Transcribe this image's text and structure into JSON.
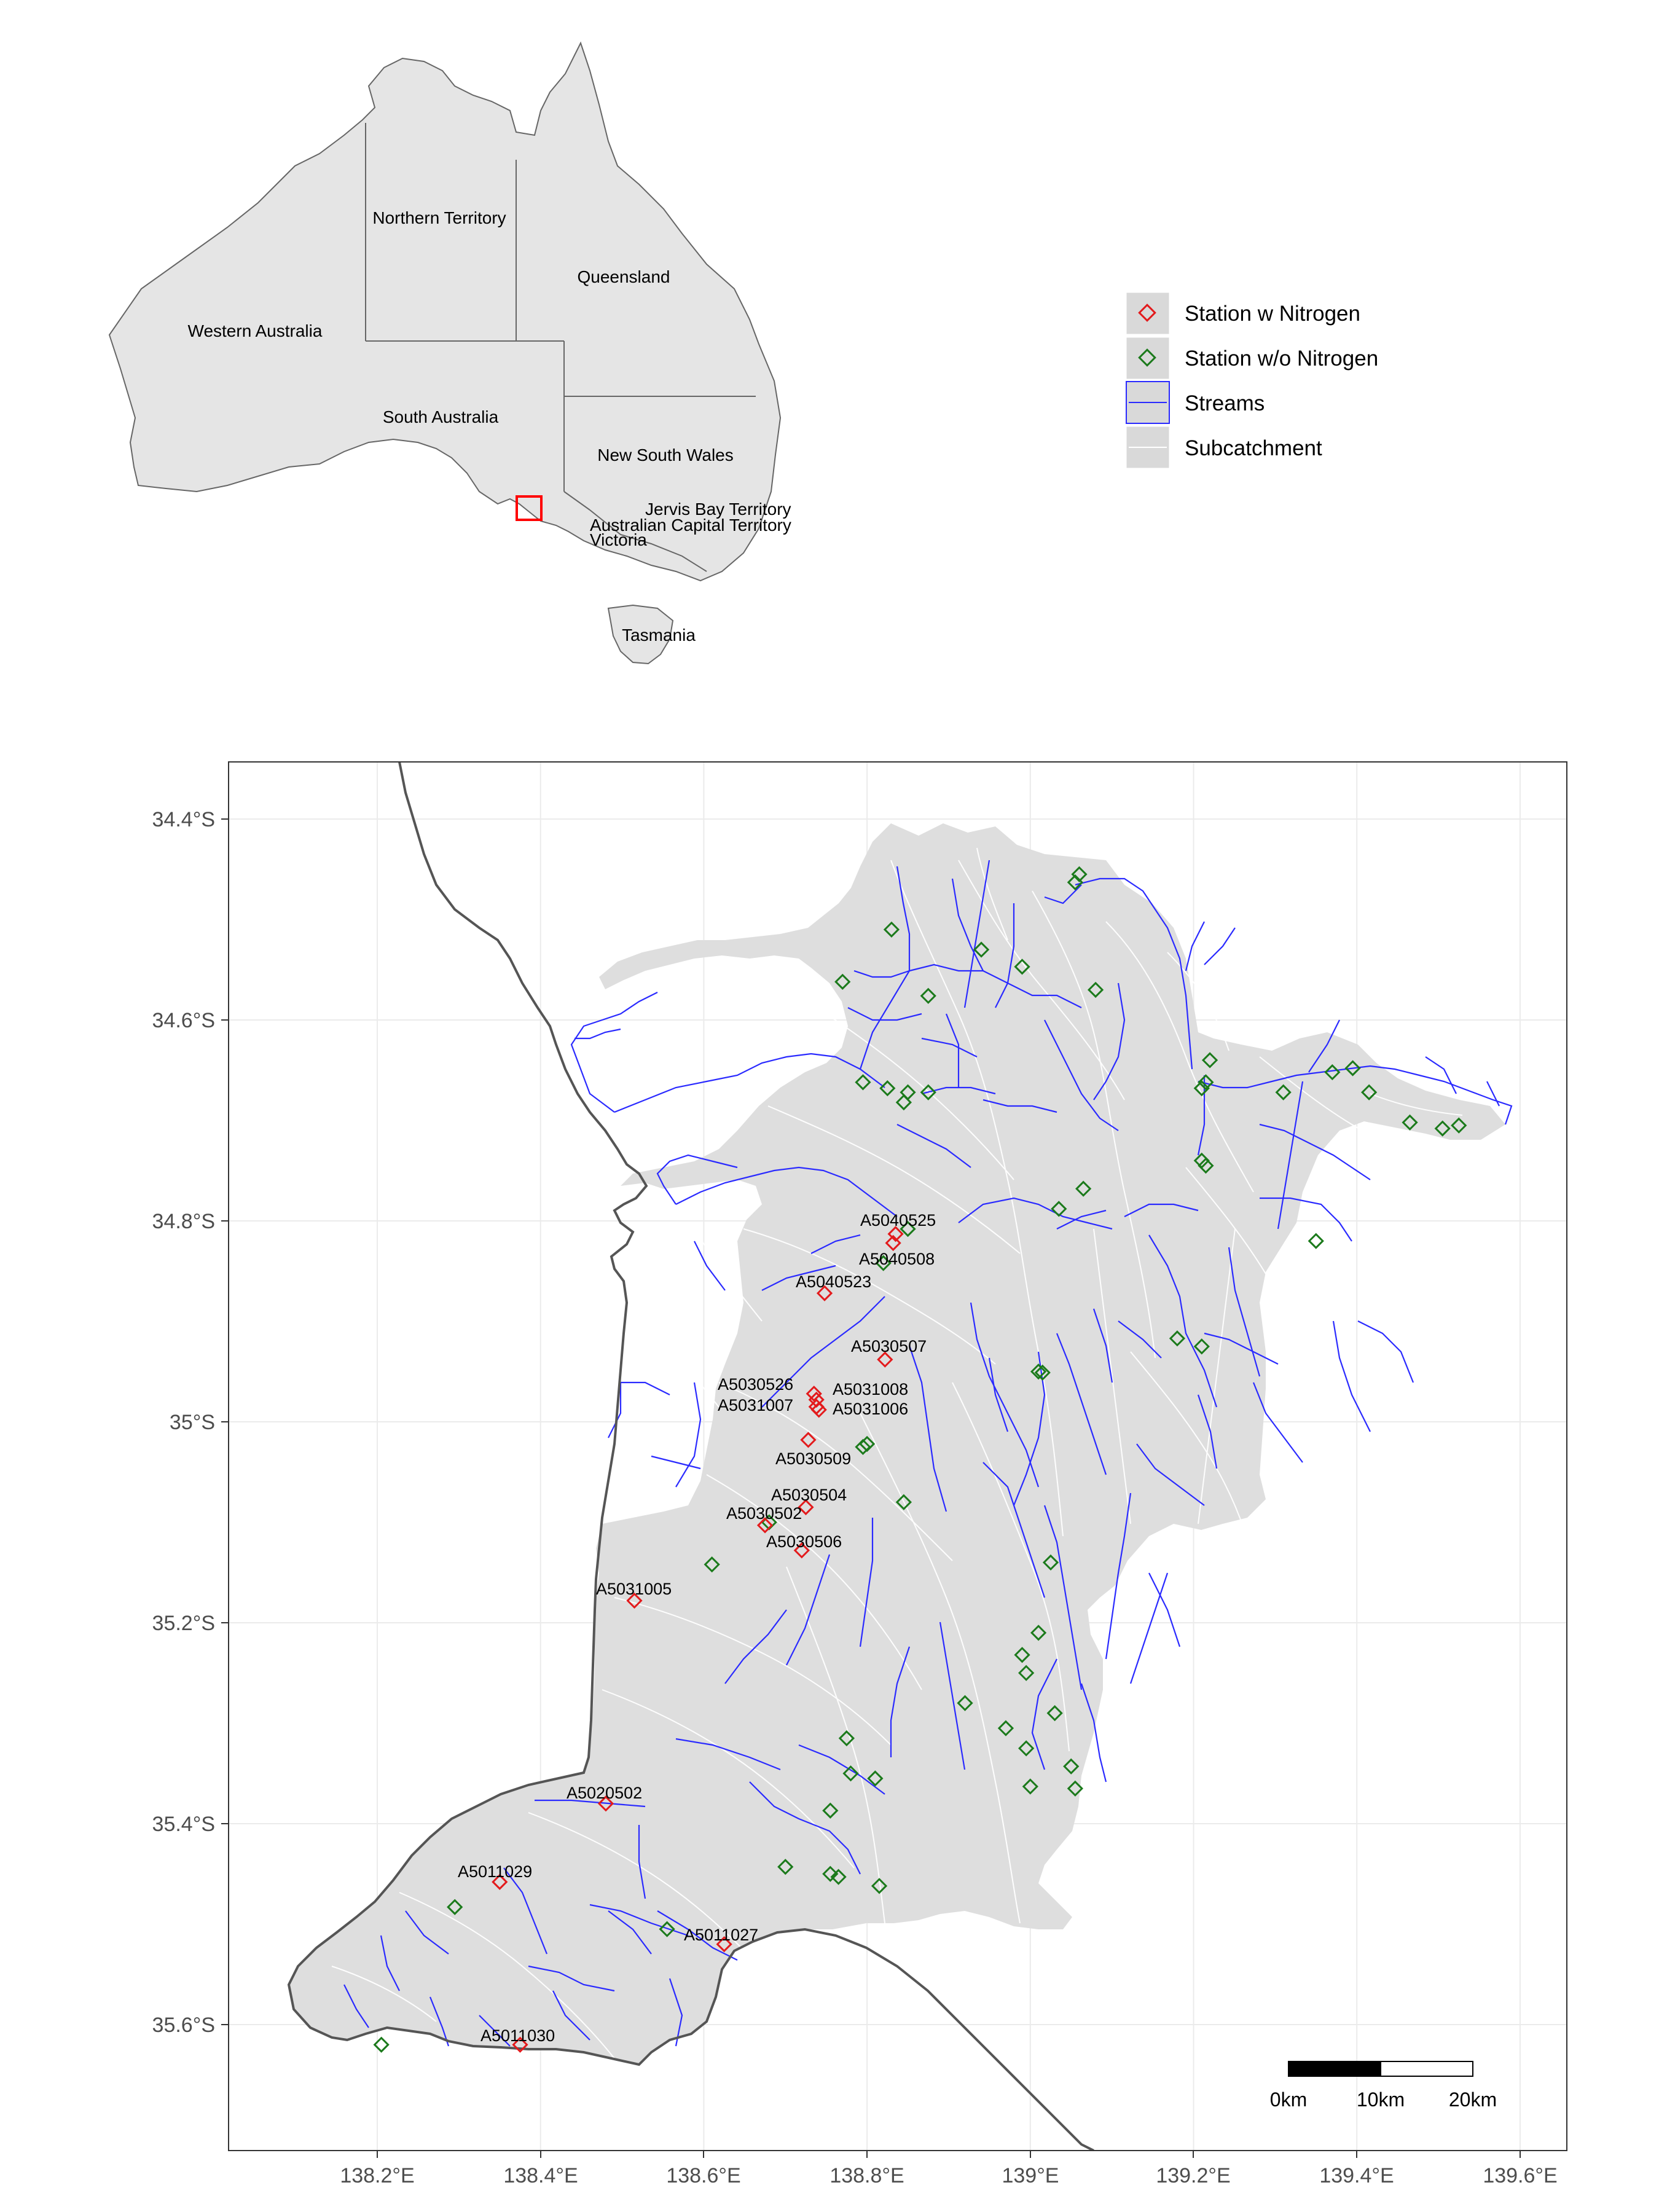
{
  "legend": {
    "items": [
      {
        "key": "with_n",
        "label": "Station w Nitrogen",
        "color": "#e31a1c"
      },
      {
        "key": "without_n",
        "label": "Station w/o Nitrogen",
        "color": "#1b7a1b"
      },
      {
        "key": "streams",
        "label": "Streams",
        "color": "#2a2aff"
      },
      {
        "key": "subcatchment",
        "label": "Subcatchment",
        "color": "#ffffff"
      }
    ]
  },
  "inset": {
    "states": [
      "Northern Territory",
      "Queensland",
      "Western Australia",
      "South Australia",
      "New South Wales",
      "Jervis Bay Territory",
      "Australian Capital Territory",
      "Victoria",
      "Tasmania"
    ]
  },
  "axes": {
    "y_ticks": [
      "34.4°S",
      "34.6°S",
      "34.8°S",
      "35°S",
      "35.2°S",
      "35.4°S",
      "35.6°S"
    ],
    "x_ticks": [
      "138.2°E",
      "138.4°E",
      "138.6°E",
      "138.8°E",
      "139°E",
      "139.2°E",
      "139.4°E",
      "139.6°E"
    ]
  },
  "scale_bar": {
    "labels": [
      "0km",
      "10km",
      "20km"
    ]
  },
  "stations_with_n": [
    {
      "id": "A5040525",
      "lon": 138.835,
      "lat": -34.813
    },
    {
      "id": "A5040508",
      "lon": 138.832,
      "lat": -34.822
    },
    {
      "id": "A5040523",
      "lon": 138.748,
      "lat": -34.872
    },
    {
      "id": "A5030507",
      "lon": 138.822,
      "lat": -34.938
    },
    {
      "id": "A5030526",
      "lon": 138.735,
      "lat": -34.972
    },
    {
      "id": "A5031008",
      "lon": 138.738,
      "lat": -34.978
    },
    {
      "id": "A5031007",
      "lon": 138.738,
      "lat": -34.985
    },
    {
      "id": "A5031006",
      "lon": 138.741,
      "lat": -34.988
    },
    {
      "id": "A5030509",
      "lon": 138.728,
      "lat": -35.018
    },
    {
      "id": "A5030504",
      "lon": 138.725,
      "lat": -35.085
    },
    {
      "id": "A5030502",
      "lon": 138.675,
      "lat": -35.103
    },
    {
      "id": "A5030506",
      "lon": 138.72,
      "lat": -35.128
    },
    {
      "id": "A5031005",
      "lon": 138.515,
      "lat": -35.178
    },
    {
      "id": "A5020502",
      "lon": 138.48,
      "lat": -35.38
    },
    {
      "id": "A5011029",
      "lon": 138.35,
      "lat": -35.458
    },
    {
      "id": "A5011027",
      "lon": 138.625,
      "lat": -35.52
    },
    {
      "id": "A5011030",
      "lon": 138.375,
      "lat": -35.62
    }
  ],
  "stations_without_n": [
    {
      "lon": 139.06,
      "lat": -34.455
    },
    {
      "lon": 139.055,
      "lat": -34.463
    },
    {
      "lon": 138.83,
      "lat": -34.51
    },
    {
      "lon": 138.94,
      "lat": -34.53
    },
    {
      "lon": 138.99,
      "lat": -34.547
    },
    {
      "lon": 138.77,
      "lat": -34.562
    },
    {
      "lon": 139.08,
      "lat": -34.57
    },
    {
      "lon": 138.875,
      "lat": -34.576
    },
    {
      "lon": 139.22,
      "lat": -34.64
    },
    {
      "lon": 139.215,
      "lat": -34.662
    },
    {
      "lon": 139.21,
      "lat": -34.668
    },
    {
      "lon": 138.795,
      "lat": -34.662
    },
    {
      "lon": 138.825,
      "lat": -34.668
    },
    {
      "lon": 138.85,
      "lat": -34.672
    },
    {
      "lon": 138.875,
      "lat": -34.672
    },
    {
      "lon": 138.845,
      "lat": -34.682
    },
    {
      "lon": 139.31,
      "lat": -34.672
    },
    {
      "lon": 139.37,
      "lat": -34.652
    },
    {
      "lon": 139.395,
      "lat": -34.648
    },
    {
      "lon": 139.415,
      "lat": -34.672
    },
    {
      "lon": 139.465,
      "lat": -34.702
    },
    {
      "lon": 139.505,
      "lat": -34.708
    },
    {
      "lon": 139.525,
      "lat": -34.705
    },
    {
      "lon": 139.21,
      "lat": -34.74
    },
    {
      "lon": 139.215,
      "lat": -34.745
    },
    {
      "lon": 139.065,
      "lat": -34.768
    },
    {
      "lon": 139.035,
      "lat": -34.788
    },
    {
      "lon": 138.85,
      "lat": -34.808
    },
    {
      "lon": 138.82,
      "lat": -34.842
    },
    {
      "lon": 139.35,
      "lat": -34.82
    },
    {
      "lon": 139.18,
      "lat": -34.917
    },
    {
      "lon": 139.21,
      "lat": -34.925
    },
    {
      "lon": 139.01,
      "lat": -34.95
    },
    {
      "lon": 139.015,
      "lat": -34.951
    },
    {
      "lon": 138.8,
      "lat": -35.022
    },
    {
      "lon": 138.795,
      "lat": -35.025
    },
    {
      "lon": 138.845,
      "lat": -35.08
    },
    {
      "lon": 138.68,
      "lat": -35.1
    },
    {
      "lon": 138.61,
      "lat": -35.142
    },
    {
      "lon": 139.025,
      "lat": -35.14
    },
    {
      "lon": 139.01,
      "lat": -35.21
    },
    {
      "lon": 138.99,
      "lat": -35.232
    },
    {
      "lon": 138.995,
      "lat": -35.25
    },
    {
      "lon": 138.92,
      "lat": -35.28
    },
    {
      "lon": 139.03,
      "lat": -35.29
    },
    {
      "lon": 138.97,
      "lat": -35.305
    },
    {
      "lon": 138.995,
      "lat": -35.325
    },
    {
      "lon": 138.775,
      "lat": -35.315
    },
    {
      "lon": 139.05,
      "lat": -35.343
    },
    {
      "lon": 138.78,
      "lat": -35.35
    },
    {
      "lon": 138.81,
      "lat": -35.355
    },
    {
      "lon": 139.0,
      "lat": -35.363
    },
    {
      "lon": 139.055,
      "lat": -35.365
    },
    {
      "lon": 138.755,
      "lat": -35.387
    },
    {
      "lon": 138.7,
      "lat": -35.443
    },
    {
      "lon": 138.755,
      "lat": -35.45
    },
    {
      "lon": 138.765,
      "lat": -35.453
    },
    {
      "lon": 138.815,
      "lat": -35.462
    },
    {
      "lon": 138.295,
      "lat": -35.483
    },
    {
      "lon": 138.555,
      "lat": -35.505
    },
    {
      "lon": 138.205,
      "lat": -35.62
    }
  ]
}
